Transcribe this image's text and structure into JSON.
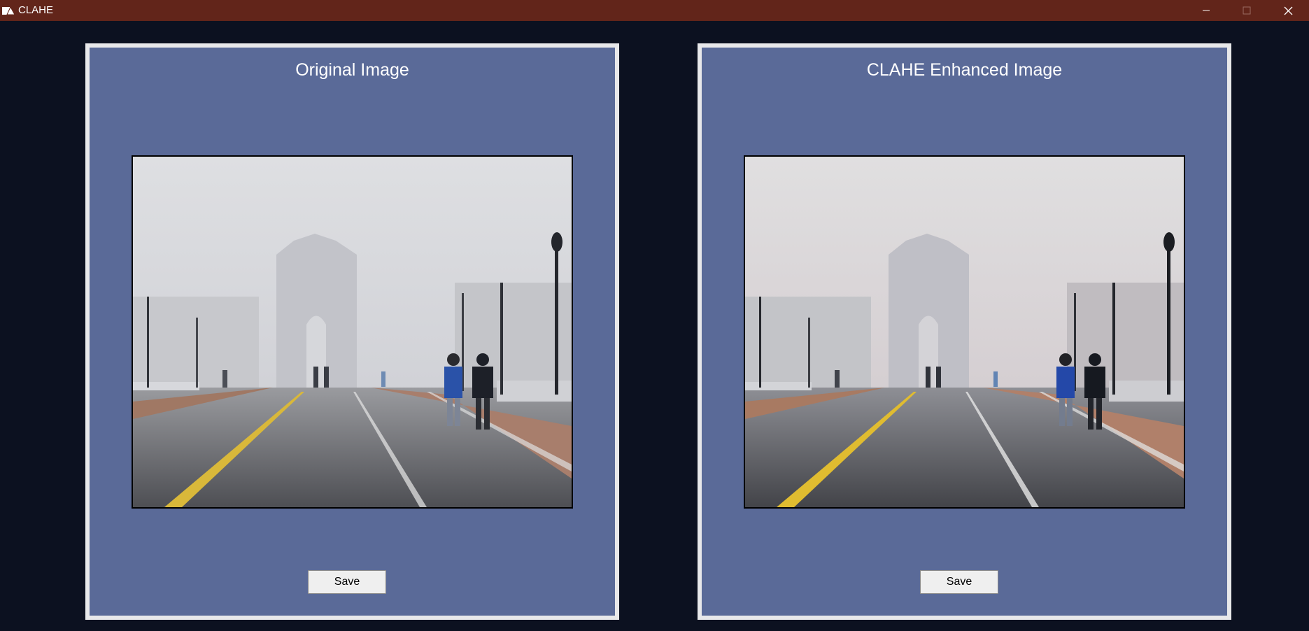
{
  "window": {
    "title": "CLAHE",
    "icon": "image-app-icon",
    "controls": [
      "minimize-icon",
      "maximize-icon",
      "close-icon"
    ]
  },
  "colors": {
    "titlebar": "#62251a",
    "background": "#0c1120",
    "panel": "#5a6a98",
    "panel_border": "#e8e8ea"
  },
  "panels": [
    {
      "title": "Original Image",
      "save_label": "Save"
    },
    {
      "title": "CLAHE Enhanced Image",
      "save_label": "Save"
    }
  ]
}
